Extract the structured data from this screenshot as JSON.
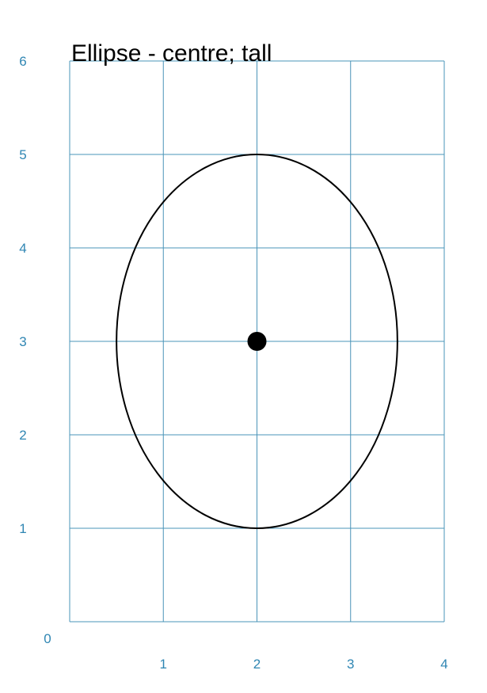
{
  "title": "Ellipse - centre; tall",
  "grid": {
    "x_range": [
      0,
      4
    ],
    "y_range": [
      0,
      6
    ],
    "x_ticks": [
      "0",
      "1",
      "2",
      "3",
      "4"
    ],
    "y_ticks": [
      "1",
      "2",
      "3",
      "4",
      "5",
      "6"
    ],
    "line_color": "#4a94b8",
    "label_color": "#2f86b3"
  },
  "ellipse": {
    "centre": [
      2,
      3
    ],
    "semi_axis_x": 1.5,
    "semi_axis_y": 2,
    "stroke_color": "#000000"
  },
  "centre_point": {
    "x": 2,
    "y": 3,
    "color": "#000000"
  }
}
